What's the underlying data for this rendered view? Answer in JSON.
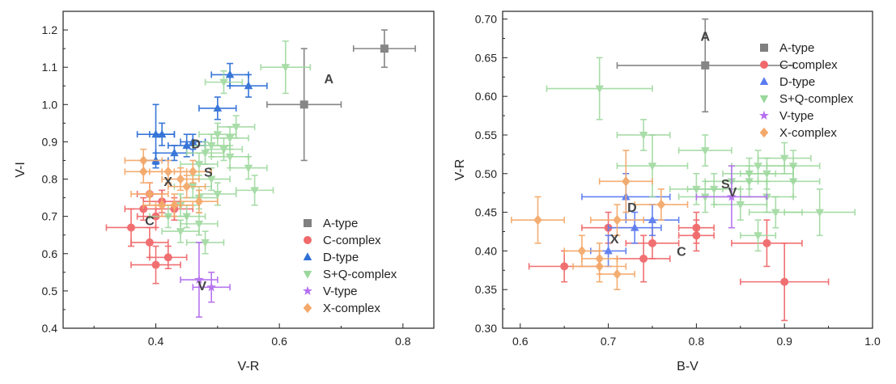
{
  "chart_data": [
    {
      "type": "scatter",
      "xlabel": "V-R",
      "ylabel": "V-I",
      "xlim": [
        0.25,
        0.85
      ],
      "ylim": [
        0.4,
        1.25
      ],
      "xticks": [
        "0.4",
        "0.6",
        "0.8"
      ],
      "yticks": [
        "0.4",
        "0.5",
        "0.6",
        "0.7",
        "0.8",
        "0.9",
        "1.0",
        "1.1",
        "1.2"
      ],
      "legend": {
        "position": "bottom-right",
        "entries": [
          "A-type",
          "C-complex",
          "D-type",
          "S+Q-complex",
          "V-type",
          "X-complex"
        ]
      },
      "series": [
        {
          "name": "A-type",
          "color": "#808080",
          "marker": "square",
          "points": [
            {
              "x": 0.77,
              "y": 1.15,
              "xerr": 0.05,
              "yerr": 0.05
            },
            {
              "x": 0.64,
              "y": 1.0,
              "xerr": 0.06,
              "yerr": 0.15
            }
          ]
        },
        {
          "name": "C-complex",
          "color": "#f0696b",
          "marker": "circle",
          "points": [
            {
              "x": 0.36,
              "y": 0.67,
              "xerr": 0.04,
              "yerr": 0.05
            },
            {
              "x": 0.39,
              "y": 0.63,
              "xerr": 0.03,
              "yerr": 0.04
            },
            {
              "x": 0.4,
              "y": 0.57,
              "xerr": 0.04,
              "yerr": 0.05
            },
            {
              "x": 0.42,
              "y": 0.59,
              "xerr": 0.03,
              "yerr": 0.03
            },
            {
              "x": 0.38,
              "y": 0.72,
              "xerr": 0.03,
              "yerr": 0.03
            },
            {
              "x": 0.4,
              "y": 0.7,
              "xerr": 0.03,
              "yerr": 0.03
            },
            {
              "x": 0.41,
              "y": 0.74,
              "xerr": 0.03,
              "yerr": 0.03
            },
            {
              "x": 0.43,
              "y": 0.72,
              "xerr": 0.03,
              "yerr": 0.03
            },
            {
              "x": 0.39,
              "y": 0.76,
              "xerr": 0.02,
              "yerr": 0.03
            }
          ]
        },
        {
          "name": "D-type",
          "color": "#2e6fd6",
          "marker": "triangle",
          "points": [
            {
              "x": 0.52,
              "y": 1.08,
              "xerr": 0.03,
              "yerr": 0.03
            },
            {
              "x": 0.55,
              "y": 1.05,
              "xerr": 0.03,
              "yerr": 0.03
            },
            {
              "x": 0.5,
              "y": 0.99,
              "xerr": 0.03,
              "yerr": 0.03
            },
            {
              "x": 0.4,
              "y": 0.92,
              "xerr": 0.03,
              "yerr": 0.08
            },
            {
              "x": 0.41,
              "y": 0.92,
              "xerr": 0.02,
              "yerr": 0.03
            },
            {
              "x": 0.45,
              "y": 0.89,
              "xerr": 0.03,
              "yerr": 0.03
            },
            {
              "x": 0.4,
              "y": 0.85,
              "xerr": 0.02,
              "yerr": 0.02
            },
            {
              "x": 0.46,
              "y": 0.9,
              "xerr": 0.02,
              "yerr": 0.02
            },
            {
              "x": 0.43,
              "y": 0.87,
              "xerr": 0.03,
              "yerr": 0.02
            }
          ]
        },
        {
          "name": "S+Q-complex",
          "color": "#9ad79a",
          "marker": "triangle-down",
          "points": [
            {
              "x": 0.61,
              "y": 1.1,
              "xerr": 0.04,
              "yerr": 0.07
            },
            {
              "x": 0.51,
              "y": 1.06,
              "xerr": 0.03,
              "yerr": 0.03
            },
            {
              "x": 0.53,
              "y": 0.94,
              "xerr": 0.03,
              "yerr": 0.03
            },
            {
              "x": 0.5,
              "y": 0.92,
              "xerr": 0.03,
              "yerr": 0.03
            },
            {
              "x": 0.52,
              "y": 0.91,
              "xerr": 0.03,
              "yerr": 0.03
            },
            {
              "x": 0.49,
              "y": 0.89,
              "xerr": 0.03,
              "yerr": 0.03
            },
            {
              "x": 0.51,
              "y": 0.88,
              "xerr": 0.03,
              "yerr": 0.03
            },
            {
              "x": 0.48,
              "y": 0.87,
              "xerr": 0.03,
              "yerr": 0.03
            },
            {
              "x": 0.52,
              "y": 0.86,
              "xerr": 0.03,
              "yerr": 0.03
            },
            {
              "x": 0.47,
              "y": 0.84,
              "xerr": 0.03,
              "yerr": 0.03
            },
            {
              "x": 0.55,
              "y": 0.83,
              "xerr": 0.03,
              "yerr": 0.03
            },
            {
              "x": 0.49,
              "y": 0.8,
              "xerr": 0.03,
              "yerr": 0.03
            },
            {
              "x": 0.46,
              "y": 0.78,
              "xerr": 0.03,
              "yerr": 0.03
            },
            {
              "x": 0.56,
              "y": 0.77,
              "xerr": 0.03,
              "yerr": 0.04
            },
            {
              "x": 0.5,
              "y": 0.76,
              "xerr": 0.03,
              "yerr": 0.03
            },
            {
              "x": 0.47,
              "y": 0.75,
              "xerr": 0.03,
              "yerr": 0.03
            },
            {
              "x": 0.44,
              "y": 0.73,
              "xerr": 0.03,
              "yerr": 0.03
            },
            {
              "x": 0.45,
              "y": 0.7,
              "xerr": 0.03,
              "yerr": 0.03
            },
            {
              "x": 0.42,
              "y": 0.7,
              "xerr": 0.03,
              "yerr": 0.03
            },
            {
              "x": 0.47,
              "y": 0.68,
              "xerr": 0.03,
              "yerr": 0.03
            },
            {
              "x": 0.44,
              "y": 0.66,
              "xerr": 0.03,
              "yerr": 0.03
            },
            {
              "x": 0.48,
              "y": 0.63,
              "xerr": 0.03,
              "yerr": 0.03
            }
          ]
        },
        {
          "name": "V-type",
          "color": "#b46ef0",
          "marker": "star",
          "points": [
            {
              "x": 0.47,
              "y": 0.53,
              "xerr": 0.03,
              "yerr": 0.1
            },
            {
              "x": 0.49,
              "y": 0.51,
              "xerr": 0.03,
              "yerr": 0.04
            }
          ]
        },
        {
          "name": "X-complex",
          "color": "#f4a96b",
          "marker": "diamond",
          "points": [
            {
              "x": 0.38,
              "y": 0.85,
              "xerr": 0.03,
              "yerr": 0.03
            },
            {
              "x": 0.38,
              "y": 0.82,
              "xerr": 0.03,
              "yerr": 0.03
            },
            {
              "x": 0.42,
              "y": 0.82,
              "xerr": 0.03,
              "yerr": 0.03
            },
            {
              "x": 0.44,
              "y": 0.8,
              "xerr": 0.03,
              "yerr": 0.03
            },
            {
              "x": 0.46,
              "y": 0.82,
              "xerr": 0.03,
              "yerr": 0.03
            },
            {
              "x": 0.39,
              "y": 0.76,
              "xerr": 0.03,
              "yerr": 0.03
            },
            {
              "x": 0.41,
              "y": 0.73,
              "xerr": 0.03,
              "yerr": 0.03
            },
            {
              "x": 0.43,
              "y": 0.73,
              "xerr": 0.03,
              "yerr": 0.03
            },
            {
              "x": 0.47,
              "y": 0.74,
              "xerr": 0.03,
              "yerr": 0.03
            },
            {
              "x": 0.45,
              "y": 0.78,
              "xerr": 0.03,
              "yerr": 0.03
            }
          ]
        }
      ],
      "annotations": [
        {
          "text": "A",
          "x": 0.68,
          "y": 1.07
        },
        {
          "text": "D",
          "x": 0.465,
          "y": 0.895
        },
        {
          "text": "S",
          "x": 0.485,
          "y": 0.82
        },
        {
          "text": "X",
          "x": 0.42,
          "y": 0.795
        },
        {
          "text": "C",
          "x": 0.39,
          "y": 0.69
        },
        {
          "text": "V",
          "x": 0.475,
          "y": 0.515
        }
      ]
    },
    {
      "type": "scatter",
      "xlabel": "B-V",
      "ylabel": "V-R",
      "xlim": [
        0.58,
        1.0
      ],
      "ylim": [
        0.3,
        0.71
      ],
      "xticks": [
        "0.6",
        "0.7",
        "0.8",
        "0.9",
        "1.0"
      ],
      "yticks": [
        "0.30",
        "0.35",
        "0.40",
        "0.45",
        "0.50",
        "0.55",
        "0.60",
        "0.65",
        "0.70"
      ],
      "legend": {
        "position": "top-right",
        "entries": [
          "A-type",
          "C-complex",
          "D-type",
          "S+Q-complex",
          "V-type",
          "X-complex"
        ]
      },
      "series": [
        {
          "name": "A-type",
          "color": "#808080",
          "marker": "square",
          "points": [
            {
              "x": 0.81,
              "y": 0.64,
              "xerr": 0.1,
              "yerr": 0.06
            }
          ]
        },
        {
          "name": "C-complex",
          "color": "#f0696b",
          "marker": "circle",
          "points": [
            {
              "x": 0.65,
              "y": 0.38,
              "xerr": 0.04,
              "yerr": 0.02
            },
            {
              "x": 0.7,
              "y": 0.43,
              "xerr": 0.03,
              "yerr": 0.02
            },
            {
              "x": 0.74,
              "y": 0.39,
              "xerr": 0.03,
              "yerr": 0.03
            },
            {
              "x": 0.75,
              "y": 0.41,
              "xerr": 0.03,
              "yerr": 0.02
            },
            {
              "x": 0.8,
              "y": 0.43,
              "xerr": 0.02,
              "yerr": 0.02
            },
            {
              "x": 0.8,
              "y": 0.42,
              "xerr": 0.02,
              "yerr": 0.02
            },
            {
              "x": 0.88,
              "y": 0.41,
              "xerr": 0.04,
              "yerr": 0.03
            },
            {
              "x": 0.9,
              "y": 0.36,
              "xerr": 0.05,
              "yerr": 0.05
            }
          ]
        },
        {
          "name": "D-type",
          "color": "#5b7cf0",
          "marker": "triangle",
          "points": [
            {
              "x": 0.72,
              "y": 0.47,
              "xerr": 0.05,
              "yerr": 0.03
            },
            {
              "x": 0.73,
              "y": 0.43,
              "xerr": 0.03,
              "yerr": 0.02
            },
            {
              "x": 0.7,
              "y": 0.4,
              "xerr": 0.02,
              "yerr": 0.02
            },
            {
              "x": 0.75,
              "y": 0.44,
              "xerr": 0.03,
              "yerr": 0.02
            }
          ]
        },
        {
          "name": "S+Q-complex",
          "color": "#9ad79a",
          "marker": "triangle-down",
          "points": [
            {
              "x": 0.69,
              "y": 0.61,
              "xerr": 0.06,
              "yerr": 0.04
            },
            {
              "x": 0.74,
              "y": 0.55,
              "xerr": 0.03,
              "yerr": 0.02
            },
            {
              "x": 0.81,
              "y": 0.53,
              "xerr": 0.03,
              "yerr": 0.02
            },
            {
              "x": 0.75,
              "y": 0.51,
              "xerr": 0.04,
              "yerr": 0.04
            },
            {
              "x": 0.87,
              "y": 0.51,
              "xerr": 0.03,
              "yerr": 0.02
            },
            {
              "x": 0.9,
              "y": 0.52,
              "xerr": 0.03,
              "yerr": 0.02
            },
            {
              "x": 0.91,
              "y": 0.51,
              "xerr": 0.03,
              "yerr": 0.02
            },
            {
              "x": 0.86,
              "y": 0.5,
              "xerr": 0.03,
              "yerr": 0.02
            },
            {
              "x": 0.88,
              "y": 0.5,
              "xerr": 0.03,
              "yerr": 0.02
            },
            {
              "x": 0.84,
              "y": 0.49,
              "xerr": 0.03,
              "yerr": 0.02
            },
            {
              "x": 0.91,
              "y": 0.49,
              "xerr": 0.03,
              "yerr": 0.02
            },
            {
              "x": 0.8,
              "y": 0.48,
              "xerr": 0.03,
              "yerr": 0.02
            },
            {
              "x": 0.82,
              "y": 0.48,
              "xerr": 0.03,
              "yerr": 0.02
            },
            {
              "x": 0.88,
              "y": 0.47,
              "xerr": 0.03,
              "yerr": 0.02
            },
            {
              "x": 0.81,
              "y": 0.47,
              "xerr": 0.03,
              "yerr": 0.02
            },
            {
              "x": 0.85,
              "y": 0.46,
              "xerr": 0.03,
              "yerr": 0.02
            },
            {
              "x": 0.89,
              "y": 0.45,
              "xerr": 0.03,
              "yerr": 0.02
            },
            {
              "x": 0.94,
              "y": 0.45,
              "xerr": 0.04,
              "yerr": 0.03
            },
            {
              "x": 0.87,
              "y": 0.42,
              "xerr": 0.02,
              "yerr": 0.02
            },
            {
              "x": 0.86,
              "y": 0.49,
              "xerr": 0.02,
              "yerr": 0.02
            }
          ]
        },
        {
          "name": "V-type",
          "color": "#b46ef0",
          "marker": "star",
          "points": [
            {
              "x": 0.84,
              "y": 0.47,
              "xerr": 0.04,
              "yerr": 0.04
            }
          ]
        },
        {
          "name": "X-complex",
          "color": "#f4a96b",
          "marker": "diamond",
          "points": [
            {
              "x": 0.62,
              "y": 0.44,
              "xerr": 0.03,
              "yerr": 0.03
            },
            {
              "x": 0.67,
              "y": 0.4,
              "xerr": 0.02,
              "yerr": 0.02
            },
            {
              "x": 0.69,
              "y": 0.38,
              "xerr": 0.03,
              "yerr": 0.02
            },
            {
              "x": 0.69,
              "y": 0.39,
              "xerr": 0.02,
              "yerr": 0.02
            },
            {
              "x": 0.71,
              "y": 0.37,
              "xerr": 0.02,
              "yerr": 0.02
            },
            {
              "x": 0.71,
              "y": 0.44,
              "xerr": 0.03,
              "yerr": 0.02
            },
            {
              "x": 0.72,
              "y": 0.49,
              "xerr": 0.03,
              "yerr": 0.04
            },
            {
              "x": 0.76,
              "y": 0.46,
              "xerr": 0.03,
              "yerr": 0.02
            }
          ]
        }
      ],
      "annotations": [
        {
          "text": "A",
          "x": 0.81,
          "y": 0.678
        },
        {
          "text": "S",
          "x": 0.833,
          "y": 0.487
        },
        {
          "text": "V",
          "x": 0.841,
          "y": 0.477
        },
        {
          "text": "D",
          "x": 0.727,
          "y": 0.457
        },
        {
          "text": "X",
          "x": 0.707,
          "y": 0.416
        },
        {
          "text": "C",
          "x": 0.783,
          "y": 0.4
        }
      ]
    }
  ]
}
